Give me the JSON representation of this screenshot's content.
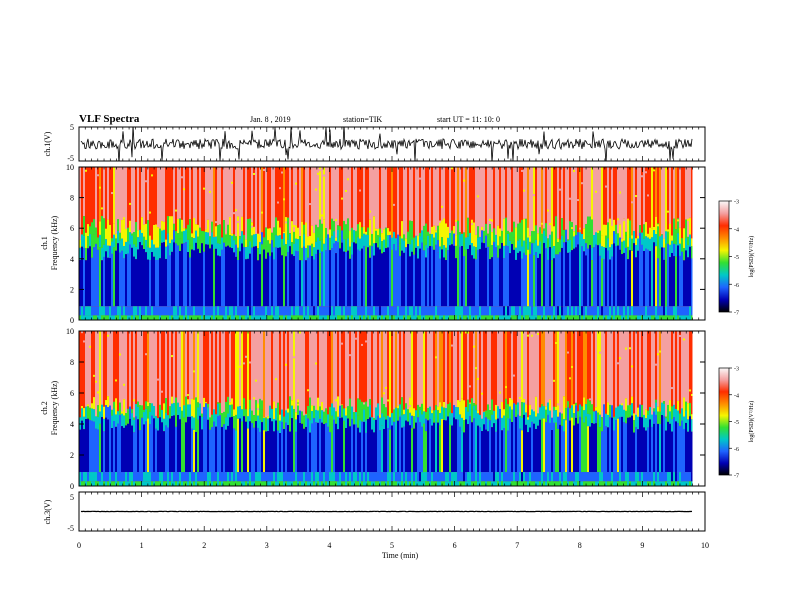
{
  "header": {
    "title": "VLF Spectra",
    "date": "Jan. 8 , 2019",
    "station": "station=TIK",
    "start": "start UT =  11: 10: 0"
  },
  "colorbar": {
    "label": "log(PSD)(V²/Hz)",
    "ticks": [
      "-3",
      "-4",
      "-5",
      "-6",
      "-7"
    ],
    "stops": [
      "#fafafa",
      "#f4a0a0",
      "#ff2d00",
      "#ff8c00",
      "#f5f500",
      "#32e032",
      "#00c8c8",
      "#1e64ff",
      "#0000b4",
      "#000000"
    ]
  },
  "chart_data": [
    {
      "type": "line",
      "panel": "ch1 waveform",
      "ylabel": "ch.1(V)",
      "yticks": [
        "5",
        "-5"
      ],
      "ylim": [
        -5,
        5
      ],
      "xlim": [
        0,
        10
      ],
      "baseline": 0,
      "noise_amplitude": 1.5,
      "spike_amplitude": 5
    },
    {
      "type": "heatmap",
      "panel": "ch1 spectrogram",
      "title_left": "ch.1",
      "ylabel": "Frequency  (kHz)",
      "yticks": [
        "0",
        "2",
        "4",
        "6",
        "8",
        "10"
      ],
      "ylim": [
        0,
        10
      ],
      "xlim": [
        0,
        9.8
      ],
      "clim": [
        -7,
        -3
      ],
      "high_band_kHz": [
        6,
        10
      ],
      "low_band_kHz": [
        0.5,
        4.5
      ]
    },
    {
      "type": "heatmap",
      "panel": "ch2 spectrogram",
      "title_left": "ch.2",
      "ylabel": "Frequency  (kHz)",
      "yticks": [
        "0",
        "2",
        "4",
        "6",
        "8",
        "10"
      ],
      "ylim": [
        0,
        10
      ],
      "xlim": [
        0,
        9.8
      ],
      "clim": [
        -7,
        -3
      ],
      "high_band_kHz": [
        5,
        10
      ],
      "low_band_kHz": [
        0.5,
        4
      ]
    },
    {
      "type": "line",
      "panel": "ch3 waveform",
      "ylabel": "ch.3(V)",
      "yticks": [
        "5",
        "-5"
      ],
      "ylim": [
        -5,
        5
      ],
      "xlim": [
        0,
        9.8
      ],
      "baseline": 0,
      "noise_amplitude": 0.05
    }
  ],
  "xaxis": {
    "label": "Time  (min)",
    "ticks": [
      "0",
      "1",
      "2",
      "3",
      "4",
      "5",
      "6",
      "7",
      "8",
      "9",
      "10"
    ],
    "range": [
      0,
      10
    ]
  }
}
